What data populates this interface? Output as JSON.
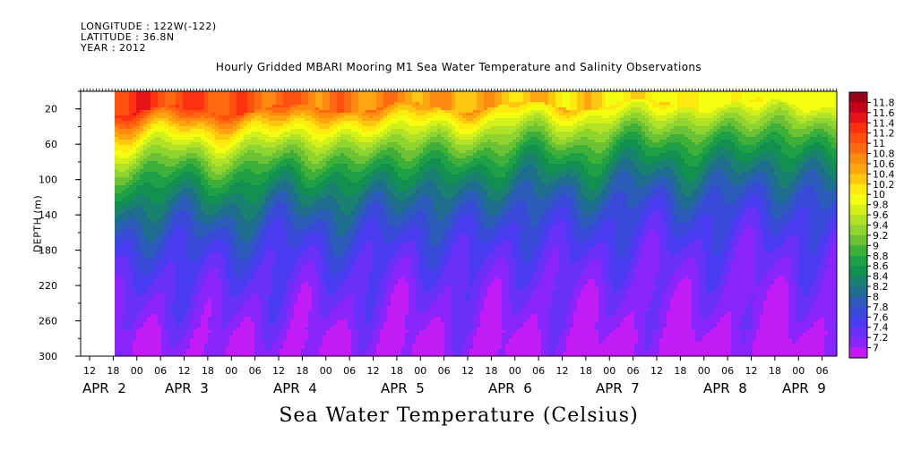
{
  "header": {
    "longitude": "LONGITUDE : 122W(-122)",
    "latitude": "LATITUDE : 36.8N",
    "year": "YEAR : 2012"
  },
  "chart_data": {
    "type": "heatmap",
    "title": "Hourly Gridded MBARI Mooring M1 Sea Water Temperature and Salinity Observations",
    "xlabel": "Sea Water Temperature (Celsius)",
    "ylabel": "DEPTH (m)",
    "ylim": [
      300,
      0
    ],
    "y_ticks": [
      "20",
      "60",
      "100",
      "140",
      "180",
      "220",
      "260",
      "300"
    ],
    "x_hour_ticks": [
      "12",
      "18",
      "00",
      "06",
      "12",
      "18",
      "00",
      "06",
      "12",
      "18",
      "00",
      "06",
      "12",
      "18",
      "00",
      "06",
      "12",
      "18",
      "00",
      "06",
      "12",
      "18",
      "00",
      "06",
      "12",
      "18",
      "00",
      "06",
      "12",
      "18",
      "00",
      "06"
    ],
    "x_day_labels": [
      "APR  2",
      "APR  3",
      "APR  4",
      "APR  5",
      "APR  6",
      "APR  7",
      "APR  8",
      "APR  9"
    ],
    "colorbar_labels": [
      "11.8",
      "11.6",
      "11.4",
      "11.2",
      "11",
      "10.8",
      "10.6",
      "10.4",
      "10.2",
      "10",
      "9.8",
      "9.6",
      "9.4",
      "9.2",
      "9",
      "8.8",
      "8.6",
      "8.4",
      "8.2",
      "8",
      "7.8",
      "7.6",
      "7.4",
      "7.2",
      "7"
    ],
    "colors": [
      "#99001a",
      "#c4001a",
      "#e8121a",
      "#ff3010",
      "#ff5010",
      "#ff6a10",
      "#ff8a10",
      "#ffa510",
      "#ffc810",
      "#ffea10",
      "#f4ff10",
      "#d4f01a",
      "#b2e228",
      "#90d430",
      "#6cc234",
      "#3eb03a",
      "#20a046",
      "#129050",
      "#1a8070",
      "#1f6e90",
      "#2a5cb8",
      "#3a4ad8",
      "#4a3cf0",
      "#6830f8",
      "#8a26fc",
      "#c21cf6"
    ],
    "start_hour_offset_from_apr2_00": -12,
    "x_hours": [
      0,
      6,
      12,
      18,
      24,
      30,
      36,
      42,
      48,
      54,
      60,
      66,
      72,
      78,
      84,
      90,
      96,
      102,
      108,
      114,
      120,
      126,
      132,
      138,
      144,
      150,
      156,
      162,
      168,
      174,
      180,
      186,
      192
    ],
    "depths": [
      10,
      20,
      30,
      40,
      50,
      60,
      70,
      80,
      90,
      100,
      110,
      120,
      130,
      140,
      150,
      160,
      170,
      180,
      190,
      200,
      210,
      220,
      230,
      240,
      250,
      260,
      270,
      280,
      290,
      300
    ],
    "no_data_before_hour": 6
  }
}
